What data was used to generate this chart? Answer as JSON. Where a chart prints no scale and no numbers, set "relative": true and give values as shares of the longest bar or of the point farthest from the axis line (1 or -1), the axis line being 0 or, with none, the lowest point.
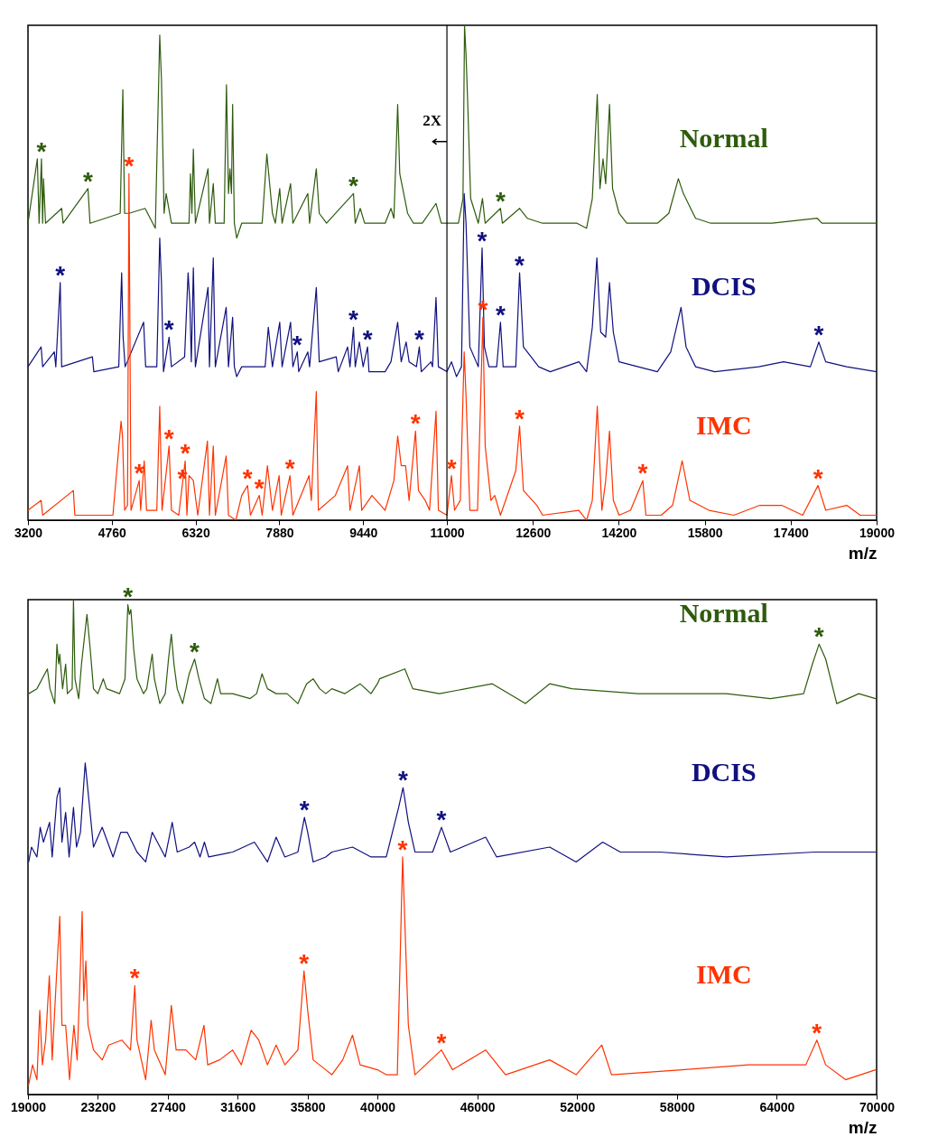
{
  "chart_data": [
    {
      "type": "line",
      "relative": true,
      "xlabel": "m/z",
      "xlim": [
        3200,
        19000
      ],
      "xticks": [
        3200,
        4760,
        6320,
        7880,
        9440,
        11000,
        12600,
        14200,
        15800,
        17400,
        19000
      ],
      "series": [
        {
          "name": "Normal",
          "color": "#2e5b0c",
          "x": [
            3200,
            3374,
            3407,
            3451,
            3473,
            3489,
            3527,
            3827,
            3854,
            4317,
            4355,
            4917,
            4966,
            4999,
            5080,
            5380,
            5571,
            5653,
            5685,
            5734,
            5772,
            5871,
            6198,
            6225,
            6252,
            6279,
            6317,
            6552,
            6579,
            6650,
            6688,
            6852,
            6895,
            6933,
            6961,
            6988,
            7010,
            7042,
            7086,
            7179,
            7560,
            7647,
            7751,
            7805,
            7887,
            7931,
            8089,
            8132,
            8410,
            8443,
            8568,
            8623,
            8759,
            9260,
            9293,
            9386,
            9468,
            9849,
            9958,
            10013,
            10083,
            10122,
            10214,
            10268,
            10377,
            10541,
            10797,
            10895,
            11000,
            11214,
            11299,
            11328,
            11356,
            11385,
            11442,
            11584,
            11662,
            11712,
            11997,
            12033,
            12353,
            12496,
            12781,
            13422,
            13600,
            13707,
            13799,
            13849,
            13906,
            13956,
            14027,
            14084,
            14205,
            14348,
            14918,
            15131,
            15309,
            15402,
            15630,
            15915,
            16342,
            17055,
            17895,
            17981,
            19000
          ],
          "values": [
            0.6,
            0.73,
            0.6,
            0.73,
            0.6,
            0.69,
            0.6,
            0.63,
            0.6,
            0.67,
            0.6,
            0.62,
            0.87,
            0.62,
            0.62,
            0.63,
            0.59,
            0.98,
            0.89,
            0.62,
            0.66,
            0.6,
            0.6,
            0.7,
            0.62,
            0.75,
            0.6,
            0.71,
            0.6,
            0.68,
            0.6,
            0.6,
            0.88,
            0.66,
            0.71,
            0.66,
            0.84,
            0.6,
            0.57,
            0.6,
            0.6,
            0.74,
            0.62,
            0.6,
            0.67,
            0.6,
            0.68,
            0.6,
            0.66,
            0.6,
            0.71,
            0.62,
            0.6,
            0.66,
            0.6,
            0.63,
            0.6,
            0.6,
            0.63,
            0.61,
            0.84,
            0.7,
            0.65,
            0.62,
            0.6,
            0.6,
            0.64,
            0.6,
            0.6,
            0.6,
            0.65,
            1.0,
            0.94,
            0.85,
            0.65,
            0.6,
            0.65,
            0.6,
            0.63,
            0.6,
            0.63,
            0.61,
            0.6,
            0.6,
            0.59,
            0.65,
            0.86,
            0.67,
            0.73,
            0.68,
            0.84,
            0.67,
            0.62,
            0.6,
            0.6,
            0.62,
            0.69,
            0.66,
            0.61,
            0.6,
            0.6,
            0.6,
            0.61,
            0.6,
            0.6
          ]
        },
        {
          "name": "DCIS",
          "color": "#10107f",
          "x": [
            3200,
            3445,
            3473,
            3691,
            3718,
            3800,
            3827,
            4399,
            4426,
            4890,
            4944,
            4971,
            5009,
            5353,
            5391,
            5598,
            5653,
            5685,
            5723,
            5827,
            5871,
            6116,
            6181,
            6214,
            6241,
            6279,
            6317,
            6552,
            6579,
            6650,
            6688,
            6890,
            6933,
            7010,
            7042,
            7086,
            7179,
            7615,
            7675,
            7751,
            7887,
            7931,
            8089,
            8132,
            8214,
            8241,
            8410,
            8443,
            8568,
            8623,
            8939,
            8977,
            9151,
            9195,
            9260,
            9293,
            9370,
            9440,
            9522,
            9549,
            9849,
            9958,
            10083,
            10149,
            10241,
            10296,
            10432,
            10486,
            10524,
            10704,
            10732,
            10797,
            10841,
            11000,
            11085,
            11178,
            11271,
            11321,
            11356,
            11427,
            11584,
            11655,
            11698,
            11783,
            11926,
            11997,
            12047,
            12282,
            12353,
            12424,
            12709,
            12923,
            13457,
            13600,
            13707,
            13792,
            13863,
            13956,
            14027,
            14098,
            14205,
            14561,
            14918,
            15167,
            15359,
            15452,
            15630,
            15986,
            16805,
            17268,
            17767,
            17924,
            18052,
            18444,
            19000
          ],
          "values": [
            0.31,
            0.35,
            0.31,
            0.34,
            0.31,
            0.48,
            0.31,
            0.33,
            0.3,
            0.31,
            0.5,
            0.37,
            0.31,
            0.4,
            0.31,
            0.31,
            0.57,
            0.48,
            0.3,
            0.37,
            0.31,
            0.33,
            0.5,
            0.44,
            0.32,
            0.51,
            0.31,
            0.47,
            0.31,
            0.53,
            0.31,
            0.43,
            0.31,
            0.41,
            0.31,
            0.29,
            0.31,
            0.31,
            0.39,
            0.31,
            0.4,
            0.31,
            0.4,
            0.31,
            0.34,
            0.3,
            0.34,
            0.31,
            0.47,
            0.32,
            0.33,
            0.3,
            0.35,
            0.31,
            0.39,
            0.31,
            0.36,
            0.31,
            0.35,
            0.3,
            0.3,
            0.32,
            0.4,
            0.32,
            0.36,
            0.32,
            0.31,
            0.35,
            0.3,
            0.32,
            0.31,
            0.45,
            0.31,
            0.3,
            0.32,
            0.29,
            0.31,
            0.66,
            0.6,
            0.35,
            0.31,
            0.55,
            0.35,
            0.31,
            0.31,
            0.4,
            0.31,
            0.31,
            0.5,
            0.35,
            0.31,
            0.3,
            0.32,
            0.3,
            0.39,
            0.53,
            0.38,
            0.37,
            0.48,
            0.38,
            0.32,
            0.31,
            0.3,
            0.34,
            0.43,
            0.35,
            0.31,
            0.3,
            0.31,
            0.32,
            0.31,
            0.36,
            0.32,
            0.31,
            0.3
          ]
        },
        {
          "name": "IMC",
          "color": "#ff3300",
          "x": [
            3200,
            3445,
            3473,
            4045,
            4072,
            4781,
            4933,
            4960,
            4999,
            5053,
            5080,
            5118,
            5271,
            5298,
            5364,
            5407,
            5598,
            5653,
            5696,
            5827,
            5871,
            6007,
            6072,
            6127,
            6159,
            6198,
            6279,
            6361,
            6541,
            6579,
            6650,
            6688,
            6890,
            6933,
            7070,
            7179,
            7288,
            7342,
            7506,
            7560,
            7658,
            7751,
            7876,
            7915,
            8078,
            8132,
            8432,
            8476,
            8568,
            8606,
            8923,
            9151,
            9195,
            9370,
            9413,
            9604,
            9849,
            10013,
            10083,
            10149,
            10230,
            10296,
            10415,
            10470,
            10595,
            10677,
            10797,
            10841,
            11000,
            11085,
            11142,
            11249,
            11321,
            11356,
            11427,
            11570,
            11670,
            11712,
            11819,
            11890,
            11997,
            12282,
            12353,
            12424,
            12674,
            12781,
            13457,
            13600,
            13707,
            13799,
            13885,
            13956,
            14027,
            14098,
            14205,
            14419,
            14647,
            14704,
            14989,
            15202,
            15380,
            15523,
            15879,
            16342,
            16826,
            17233,
            17624,
            17909,
            18052,
            18444,
            18693,
            19000
          ],
          "values": [
            0.02,
            0.04,
            0.01,
            0.06,
            0.01,
            0.01,
            0.2,
            0.17,
            0.02,
            0.03,
            0.7,
            0.02,
            0.08,
            0.02,
            0.12,
            0.02,
            0.02,
            0.23,
            0.02,
            0.15,
            0.02,
            0.01,
            0.07,
            0.12,
            0.01,
            0.09,
            0.08,
            0.01,
            0.16,
            0.01,
            0.15,
            0.01,
            0.13,
            0.01,
            0.0,
            0.05,
            0.07,
            0.01,
            0.05,
            0.01,
            0.11,
            0.02,
            0.09,
            0.01,
            0.09,
            0.01,
            0.09,
            0.04,
            0.26,
            0.02,
            0.05,
            0.11,
            0.02,
            0.11,
            0.02,
            0.05,
            0.02,
            0.08,
            0.17,
            0.11,
            0.11,
            0.04,
            0.18,
            0.06,
            0.04,
            0.02,
            0.22,
            0.02,
            0.01,
            0.09,
            0.02,
            0.04,
            0.34,
            0.25,
            0.02,
            0.02,
            0.41,
            0.15,
            0.04,
            0.05,
            0.01,
            0.1,
            0.19,
            0.06,
            0.03,
            0.01,
            0.02,
            0.0,
            0.04,
            0.23,
            0.02,
            0.08,
            0.18,
            0.04,
            0.01,
            0.02,
            0.08,
            0.01,
            0.01,
            0.03,
            0.12,
            0.04,
            0.02,
            0.01,
            0.03,
            0.03,
            0.01,
            0.07,
            0.02,
            0.03,
            0.01,
            0.01
          ]
        }
      ],
      "ref_lines": [
        {
          "axis": "x",
          "value": 11000,
          "label": "2X",
          "color": "#000000"
        }
      ],
      "annotations": [
        {
          "text": "*",
          "x": 3451,
          "y": 0.73
        },
        {
          "text": "*",
          "x": 4317,
          "y": 0.67
        },
        {
          "text": "*",
          "x": 9260,
          "y": 0.66
        },
        {
          "text": "*",
          "x": 11997,
          "y": 0.63
        },
        {
          "text": "*",
          "x": 5080,
          "y": 0.7
        },
        {
          "text": "*",
          "x": 5271,
          "y": 0.08
        },
        {
          "text": "*",
          "x": 5827,
          "y": 0.15
        },
        {
          "text": "*",
          "x": 6127,
          "y": 0.12
        },
        {
          "text": "*",
          "x": 6072,
          "y": 0.07
        },
        {
          "text": "*",
          "x": 7288,
          "y": 0.07
        },
        {
          "text": "*",
          "x": 7506,
          "y": 0.05
        },
        {
          "text": "*",
          "x": 8078,
          "y": 0.09
        },
        {
          "text": "*",
          "x": 10415,
          "y": 0.18
        },
        {
          "text": "*",
          "x": 11085,
          "y": 0.09
        },
        {
          "text": "*",
          "x": 11670,
          "y": 0.41
        },
        {
          "text": "*",
          "x": 12353,
          "y": 0.19
        },
        {
          "text": "*",
          "x": 14647,
          "y": 0.08
        },
        {
          "text": "*",
          "x": 17909,
          "y": 0.07
        },
        {
          "text": "*",
          "x": 3800,
          "y": 0.48
        },
        {
          "text": "*",
          "x": 5827,
          "y": 0.37
        },
        {
          "text": "*",
          "x": 8214,
          "y": 0.34
        },
        {
          "text": "*",
          "x": 9260,
          "y": 0.39
        },
        {
          "text": "*",
          "x": 9522,
          "y": 0.35
        },
        {
          "text": "*",
          "x": 10486,
          "y": 0.35
        },
        {
          "text": "*",
          "x": 11655,
          "y": 0.55
        },
        {
          "text": "*",
          "x": 11997,
          "y": 0.4
        },
        {
          "text": "*",
          "x": 12353,
          "y": 0.5
        },
        {
          "text": "*",
          "x": 17924,
          "y": 0.36
        }
      ]
    },
    {
      "type": "line",
      "relative": true,
      "xlabel": "m/z",
      "xlim": [
        19000,
        70000
      ],
      "xticks": [
        19000,
        23200,
        27400,
        31600,
        35800,
        40000,
        46000,
        52000,
        58000,
        64000,
        70000
      ],
      "series": [
        {
          "name": "Normal",
          "color": "#2e5b0c",
          "x": [
            19041,
            19538,
            20165,
            20322,
            20610,
            20740,
            20845,
            20910,
            21080,
            21263,
            21368,
            21655,
            21734,
            21825,
            22047,
            22217,
            22544,
            22740,
            22936,
            23198,
            23524,
            23720,
            24505,
            24831,
            25001,
            25093,
            25184,
            25354,
            25550,
            25942,
            26138,
            26465,
            26596,
            26923,
            27249,
            27445,
            27615,
            27772,
            27968,
            28295,
            28687,
            29014,
            29275,
            29602,
            29994,
            30386,
            30582,
            31301,
            32351,
            32739,
            33066,
            33392,
            33915,
            34569,
            35222,
            35745,
            36137,
            36529,
            36895,
            37261,
            38045,
            38960,
            39614,
            40000,
            40134,
            41647,
            42125,
            43717,
            46902,
            48892,
            50352,
            51679,
            55660,
            60968,
            63622,
            65613,
            66143,
            66541,
            66939,
            67603,
            68930,
            69940
          ],
          "values": [
            0.81,
            0.82,
            0.86,
            0.82,
            0.79,
            0.91,
            0.87,
            0.89,
            0.82,
            0.87,
            0.81,
            0.82,
            1.0,
            0.84,
            0.8,
            0.87,
            0.97,
            0.9,
            0.82,
            0.81,
            0.84,
            0.82,
            0.81,
            0.84,
            0.99,
            0.97,
            0.98,
            0.9,
            0.84,
            0.81,
            0.82,
            0.89,
            0.84,
            0.79,
            0.81,
            0.88,
            0.93,
            0.87,
            0.82,
            0.79,
            0.85,
            0.88,
            0.84,
            0.8,
            0.79,
            0.84,
            0.81,
            0.81,
            0.8,
            0.81,
            0.85,
            0.82,
            0.81,
            0.81,
            0.79,
            0.83,
            0.84,
            0.82,
            0.81,
            0.82,
            0.81,
            0.83,
            0.81,
            0.83,
            0.84,
            0.86,
            0.82,
            0.81,
            0.83,
            0.79,
            0.83,
            0.82,
            0.81,
            0.81,
            0.8,
            0.81,
            0.87,
            0.91,
            0.88,
            0.79,
            0.81,
            0.8
          ]
        },
        {
          "name": "DCIS",
          "color": "#10107f",
          "x": [
            19041,
            19211,
            19538,
            19734,
            19930,
            20296,
            20453,
            20740,
            20910,
            21041,
            21263,
            21472,
            21734,
            21917,
            22152,
            22439,
            22675,
            22936,
            23459,
            24113,
            24570,
            24962,
            25550,
            26073,
            26465,
            27249,
            27667,
            27968,
            28687,
            29014,
            29340,
            29602,
            29863,
            31301,
            32608,
            33392,
            33915,
            34438,
            35222,
            35614,
            35810,
            36137,
            36895,
            37261,
            38503,
            39614,
            40000,
            40532,
            41275,
            41541,
            41859,
            42257,
            43319,
            43849,
            44381,
            46504,
            47167,
            50352,
            51944,
            53537,
            54598,
            56987,
            60968,
            66276,
            69940
          ],
          "values": [
            0.47,
            0.5,
            0.48,
            0.54,
            0.51,
            0.55,
            0.48,
            0.6,
            0.62,
            0.51,
            0.57,
            0.48,
            0.58,
            0.5,
            0.53,
            0.67,
            0.59,
            0.5,
            0.54,
            0.48,
            0.53,
            0.53,
            0.49,
            0.47,
            0.53,
            0.48,
            0.55,
            0.49,
            0.5,
            0.51,
            0.48,
            0.51,
            0.48,
            0.49,
            0.51,
            0.47,
            0.52,
            0.48,
            0.49,
            0.56,
            0.53,
            0.47,
            0.48,
            0.49,
            0.5,
            0.48,
            0.48,
            0.48,
            0.58,
            0.62,
            0.55,
            0.49,
            0.49,
            0.54,
            0.49,
            0.52,
            0.48,
            0.5,
            0.47,
            0.51,
            0.49,
            0.49,
            0.48,
            0.49,
            0.49
          ]
        },
        {
          "name": "IMC",
          "color": "#ff3300",
          "x": [
            19041,
            19277,
            19538,
            19708,
            19865,
            20061,
            20283,
            20453,
            20714,
            20910,
            21041,
            21263,
            21498,
            21760,
            21956,
            22152,
            22257,
            22348,
            22479,
            22610,
            22936,
            23459,
            23851,
            24635,
            25158,
            25419,
            25550,
            26073,
            26400,
            26596,
            27249,
            27615,
            27903,
            28491,
            29079,
            29576,
            29798,
            30517,
            31301,
            31824,
            32412,
            32869,
            33392,
            33915,
            34438,
            35222,
            35588,
            35810,
            36137,
            36895,
            37261,
            37915,
            38503,
            38960,
            40000,
            40532,
            41196,
            41514,
            41859,
            42257,
            43849,
            44513,
            46504,
            47698,
            50352,
            51944,
            53484,
            54068,
            58314,
            62295,
            65745,
            66409,
            66939,
            68133,
            69940
          ],
          "values": [
            0.02,
            0.06,
            0.03,
            0.17,
            0.06,
            0.11,
            0.24,
            0.07,
            0.24,
            0.36,
            0.14,
            0.14,
            0.03,
            0.14,
            0.07,
            0.26,
            0.37,
            0.19,
            0.27,
            0.14,
            0.09,
            0.07,
            0.1,
            0.11,
            0.09,
            0.22,
            0.11,
            0.03,
            0.15,
            0.09,
            0.04,
            0.18,
            0.09,
            0.09,
            0.07,
            0.14,
            0.06,
            0.07,
            0.09,
            0.06,
            0.13,
            0.11,
            0.06,
            0.1,
            0.06,
            0.09,
            0.25,
            0.17,
            0.07,
            0.05,
            0.04,
            0.07,
            0.12,
            0.06,
            0.05,
            0.04,
            0.04,
            0.48,
            0.14,
            0.04,
            0.09,
            0.05,
            0.09,
            0.04,
            0.07,
            0.04,
            0.1,
            0.04,
            0.05,
            0.06,
            0.06,
            0.11,
            0.06,
            0.03,
            0.05
          ]
        }
      ],
      "annotations": [
        {
          "text": "*",
          "x": 25001,
          "y": 0.99
        },
        {
          "text": "*",
          "x": 29014,
          "y": 0.88
        },
        {
          "text": "*",
          "x": 66541,
          "y": 0.91
        },
        {
          "text": "*",
          "x": 35614,
          "y": 0.56
        },
        {
          "text": "*",
          "x": 41541,
          "y": 0.62
        },
        {
          "text": "*",
          "x": 43849,
          "y": 0.54
        },
        {
          "text": "*",
          "x": 25419,
          "y": 0.22
        },
        {
          "text": "*",
          "x": 35588,
          "y": 0.25
        },
        {
          "text": "*",
          "x": 41514,
          "y": 0.48
        },
        {
          "text": "*",
          "x": 43849,
          "y": 0.09
        },
        {
          "text": "*",
          "x": 66409,
          "y": 0.11
        }
      ]
    }
  ]
}
